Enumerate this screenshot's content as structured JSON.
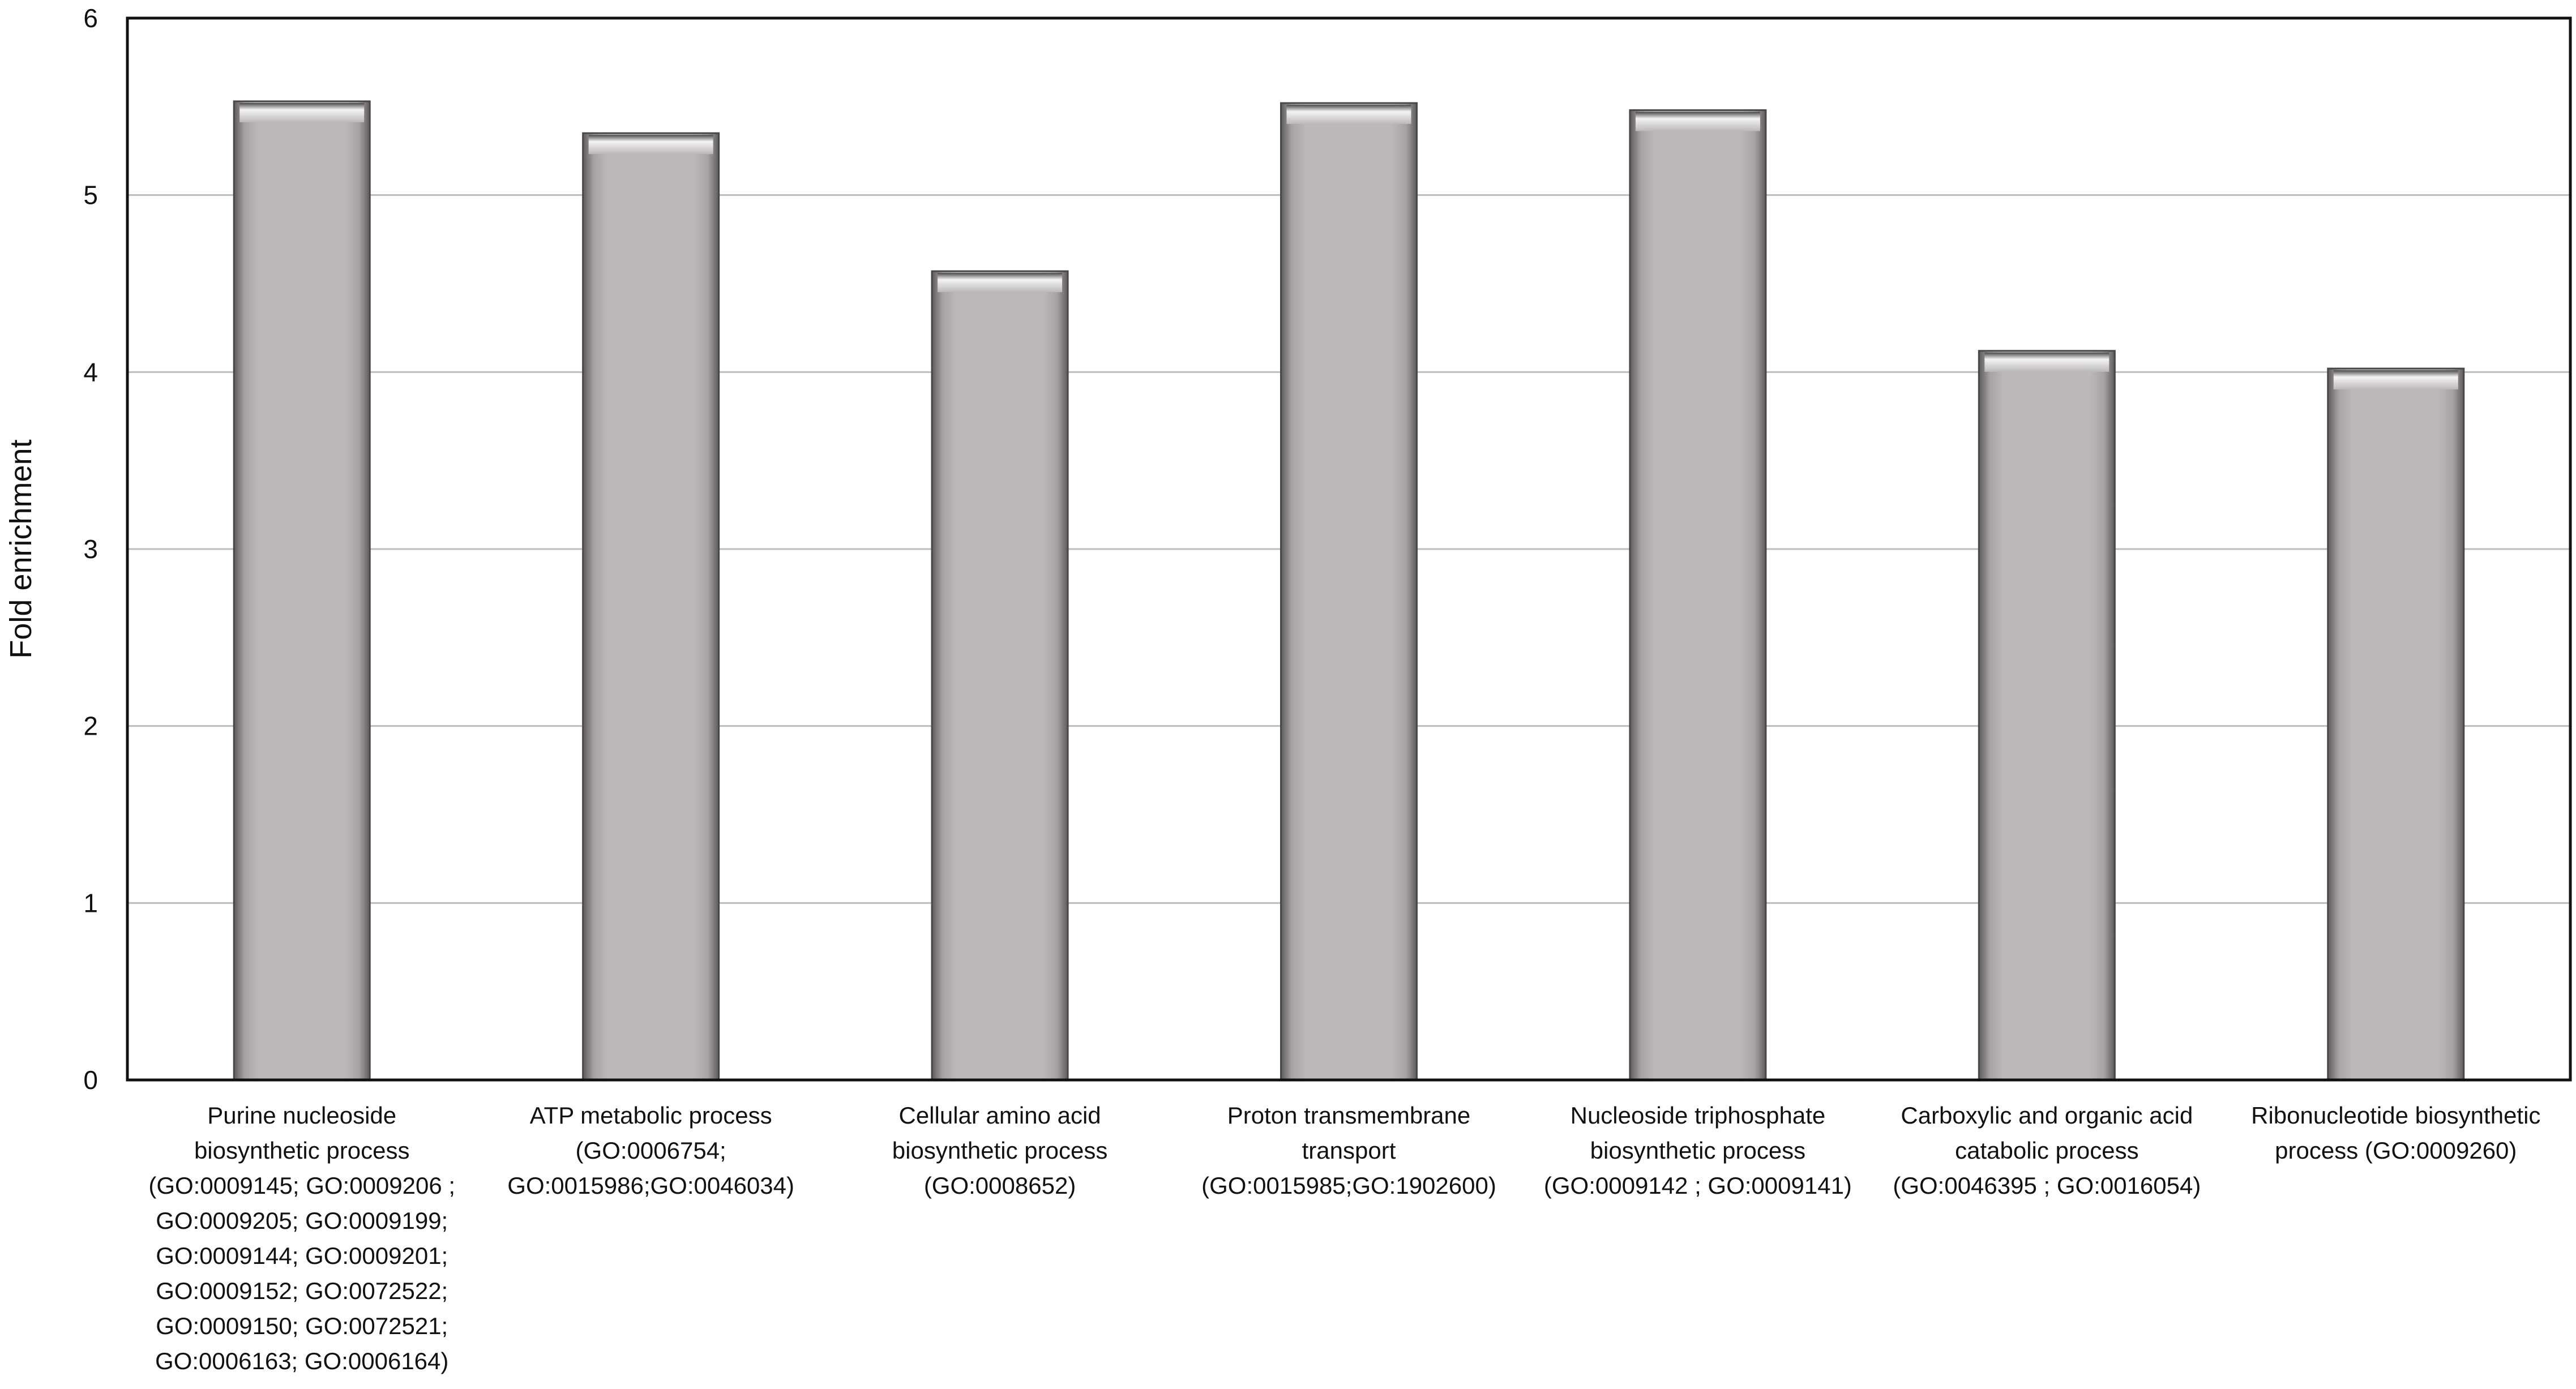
{
  "chart_data": {
    "type": "bar",
    "title": "",
    "xlabel": "",
    "ylabel": "Fold enrichment",
    "ylim": [
      0,
      6
    ],
    "yticks": [
      "0",
      "1",
      "2",
      "3",
      "4",
      "5",
      "6"
    ],
    "grid": true,
    "bar_color": "#b8b5b4",
    "categories": [
      [
        "Purine nucleoside",
        "biosynthetic process",
        "(GO:0009145; GO:0009206 ;",
        "GO:0009205; GO:0009199;",
        "GO:0009144; GO:0009201;",
        "GO:0009152; GO:0072522;",
        "GO:0009150; GO:0072521;",
        "GO:0006163; GO:0006164)"
      ],
      [
        "ATP metabolic process",
        "(GO:0006754;",
        "GO:0015986;GO:0046034)"
      ],
      [
        "Cellular amino acid",
        "biosynthetic process",
        "(GO:0008652)"
      ],
      [
        "Proton transmembrane",
        "transport",
        "(GO:0015985;GO:1902600)"
      ],
      [
        "Nucleoside triphosphate",
        "biosynthetic process",
        "(GO:0009142 ; GO:0009141)"
      ],
      [
        "Carboxylic and organic acid",
        "catabolic process",
        "(GO:0046395 ; GO:0016054)"
      ],
      [
        "Ribonucleotide biosynthetic",
        "process (GO:0009260)"
      ]
    ],
    "values": [
      5.53,
      5.35,
      4.57,
      5.52,
      5.48,
      4.12,
      4.02
    ]
  }
}
